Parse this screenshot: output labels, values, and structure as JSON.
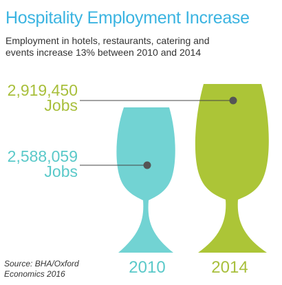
{
  "title": "Hospitality Employment Increase",
  "subtitle": "Employment in hotels, restaurants, catering and events increase 13% between 2010 and 2014",
  "source": "Source: BHA/Oxford Economics 2016",
  "colors": {
    "title": "#3bb4e1",
    "glass_2010": "#72d3d3",
    "glass_2014": "#acc537",
    "leader_line": "#444444",
    "dot": "#555555"
  },
  "chart_data": {
    "type": "bar",
    "categories": [
      "2010",
      "2014"
    ],
    "values": [
      2588059,
      2919450
    ],
    "value_labels": [
      {
        "value": "2,588,059",
        "unit": "Jobs"
      },
      {
        "value": "2,919,450",
        "unit": "Jobs"
      }
    ],
    "title": "Hospitality Employment Increase",
    "xlabel": "",
    "ylabel": "",
    "change_percent": 13
  }
}
